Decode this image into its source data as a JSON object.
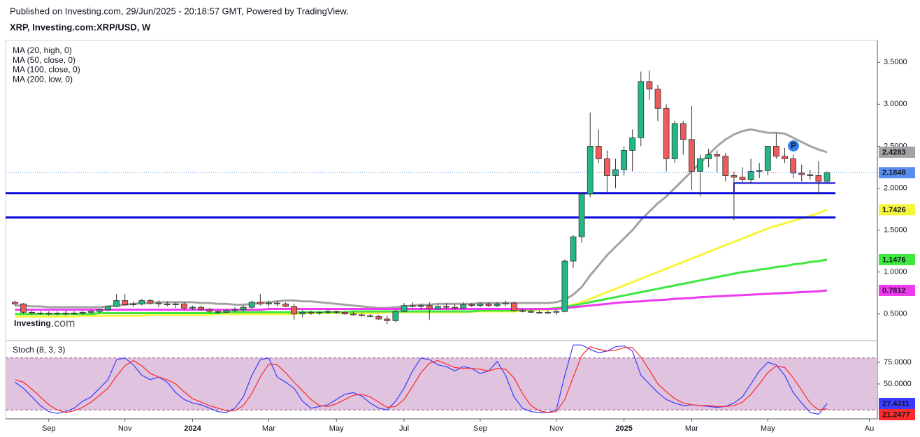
{
  "chart_data": {
    "type": "candlestick",
    "subtitle": "Published on Investing.com, 29/Jun/2025 - 20:18:57 GMT, Powered by TradingView.",
    "title": "XRP, Investing.com:XRP/USD, W",
    "logo": {
      "name": "Investing",
      "suffix": ".com"
    },
    "event_marker": "P",
    "categories": [
      null,
      null,
      null,
      null,
      "Sep",
      null,
      null,
      null,
      null,
      null,
      null,
      null,
      null,
      "Nov",
      null,
      null,
      null,
      null,
      null,
      null,
      null,
      "2024",
      null,
      null,
      null,
      null,
      null,
      null,
      null,
      null,
      "Mar",
      null,
      null,
      null,
      null,
      null,
      null,
      null,
      "May",
      null,
      null,
      null,
      null,
      null,
      null,
      null,
      "Jul",
      null,
      null,
      null,
      null,
      null,
      null,
      null,
      null,
      "Sep",
      null,
      null,
      null,
      null,
      null,
      null,
      null,
      null,
      "Nov",
      null,
      null,
      null,
      null,
      null,
      null,
      null,
      "2025",
      null,
      null,
      null,
      null,
      null,
      null,
      null,
      "Mar",
      null,
      null,
      null,
      null,
      null,
      null,
      null,
      null,
      "May",
      null,
      null,
      null,
      null,
      null,
      null,
      null,
      null,
      null,
      null,
      null,
      "Au"
    ],
    "open": [
      0.64,
      0.62,
      0.52,
      0.51,
      0.51,
      0.5,
      0.51,
      0.5,
      0.51,
      0.52,
      0.53,
      0.55,
      0.59,
      0.66,
      0.61,
      0.62,
      0.66,
      0.63,
      0.62,
      0.61,
      0.62,
      0.57,
      0.58,
      0.55,
      0.53,
      0.52,
      0.54,
      0.55,
      0.58,
      0.64,
      0.62,
      0.63,
      0.62,
      0.59,
      0.5,
      0.52,
      0.51,
      0.52,
      0.53,
      0.52,
      0.5,
      0.49,
      0.48,
      0.47,
      0.44,
      0.42,
      0.53,
      0.6,
      0.59,
      0.6,
      0.56,
      0.59,
      0.58,
      0.57,
      0.61,
      0.6,
      0.62,
      0.6,
      0.62,
      0.63,
      0.54,
      0.53,
      0.52,
      0.51,
      0.52,
      0.53,
      1.13,
      1.42,
      1.93,
      2.5,
      2.35,
      2.15,
      2.22,
      2.45,
      2.6,
      3.27,
      3.18,
      2.95,
      2.35,
      2.77,
      2.58,
      2.2,
      2.35,
      2.4,
      2.38,
      2.15,
      2.13,
      2.1,
      2.2,
      2.21,
      2.5,
      2.38,
      2.35,
      2.18,
      2.16,
      2.15,
      2.08,
      null,
      null,
      null,
      null,
      null
    ],
    "high": [
      0.66,
      0.63,
      0.54,
      0.53,
      0.53,
      0.53,
      0.54,
      0.53,
      0.53,
      0.55,
      0.56,
      0.6,
      0.74,
      0.74,
      0.65,
      0.68,
      0.68,
      0.66,
      0.65,
      0.64,
      0.64,
      0.6,
      0.6,
      0.57,
      0.55,
      0.56,
      0.58,
      0.6,
      0.66,
      0.74,
      0.66,
      0.66,
      0.64,
      0.62,
      0.55,
      0.54,
      0.53,
      0.55,
      0.54,
      0.53,
      0.53,
      0.51,
      0.5,
      0.49,
      0.48,
      0.55,
      0.63,
      0.64,
      0.62,
      0.64,
      0.61,
      0.63,
      0.62,
      0.64,
      0.63,
      0.64,
      0.64,
      0.64,
      0.66,
      0.65,
      0.56,
      0.55,
      0.54,
      0.54,
      0.55,
      1.15,
      1.44,
      1.95,
      2.9,
      2.7,
      2.45,
      2.35,
      2.5,
      2.7,
      3.39,
      3.4,
      3.23,
      3.0,
      2.8,
      2.8,
      2.98,
      2.4,
      2.47,
      2.45,
      2.42,
      2.2,
      2.25,
      2.35,
      2.3,
      2.5,
      2.65,
      2.48,
      2.4,
      2.28,
      2.22,
      2.32,
      2.2,
      null,
      null,
      null,
      null,
      null
    ],
    "low": [
      0.6,
      0.5,
      0.49,
      0.49,
      0.48,
      0.48,
      0.48,
      0.49,
      0.49,
      0.5,
      0.51,
      0.53,
      0.58,
      0.6,
      0.58,
      0.6,
      0.61,
      0.58,
      0.59,
      0.57,
      0.55,
      0.55,
      0.54,
      0.51,
      0.5,
      0.51,
      0.52,
      0.53,
      0.56,
      0.6,
      0.58,
      0.59,
      0.58,
      0.43,
      0.46,
      0.49,
      0.49,
      0.5,
      0.5,
      0.49,
      0.48,
      0.47,
      0.46,
      0.43,
      0.38,
      0.4,
      0.52,
      0.57,
      0.55,
      0.43,
      0.55,
      0.56,
      0.55,
      0.56,
      0.58,
      0.58,
      0.58,
      0.58,
      0.59,
      0.53,
      0.52,
      0.51,
      0.5,
      0.5,
      0.49,
      0.52,
      1.05,
      1.35,
      1.89,
      2.3,
      1.95,
      2.0,
      2.15,
      2.2,
      2.5,
      3.05,
      2.8,
      2.2,
      2.3,
      2.4,
      1.98,
      1.9,
      2.25,
      2.18,
      2.08,
      1.62,
      2.07,
      2.05,
      2.12,
      2.15,
      2.35,
      2.3,
      2.12,
      2.08,
      2.1,
      1.93,
      2.07,
      null,
      null,
      null,
      null,
      null
    ],
    "close": [
      0.62,
      0.52,
      0.51,
      0.51,
      0.5,
      0.51,
      0.5,
      0.51,
      0.52,
      0.53,
      0.55,
      0.59,
      0.66,
      0.61,
      0.62,
      0.66,
      0.63,
      0.62,
      0.61,
      0.62,
      0.57,
      0.58,
      0.55,
      0.53,
      0.52,
      0.54,
      0.55,
      0.58,
      0.64,
      0.62,
      0.63,
      0.62,
      0.59,
      0.5,
      0.52,
      0.51,
      0.52,
      0.53,
      0.52,
      0.5,
      0.49,
      0.48,
      0.47,
      0.44,
      0.42,
      0.53,
      0.6,
      0.59,
      0.6,
      0.56,
      0.59,
      0.58,
      0.57,
      0.61,
      0.6,
      0.62,
      0.6,
      0.62,
      0.63,
      0.54,
      0.53,
      0.52,
      0.51,
      0.52,
      0.53,
      1.13,
      1.42,
      1.93,
      2.5,
      2.35,
      2.15,
      2.22,
      2.45,
      2.6,
      3.27,
      3.18,
      2.95,
      2.35,
      2.77,
      2.58,
      2.2,
      2.35,
      2.4,
      2.38,
      2.15,
      2.13,
      2.1,
      2.2,
      2.21,
      2.5,
      2.38,
      2.35,
      2.18,
      2.16,
      2.15,
      2.08,
      2.1848,
      null,
      null,
      null,
      null,
      null
    ],
    "up_color": "#22b884",
    "down_color": "#ef5a5a",
    "last_price_color": "#5b8def",
    "series": [
      {
        "name": "MA (20, high, 0)",
        "color": "#a3a3a3",
        "values": [
          0.6,
          0.6,
          0.59,
          0.59,
          0.58,
          0.58,
          0.58,
          0.58,
          0.58,
          0.58,
          0.58,
          0.59,
          0.6,
          0.61,
          0.62,
          0.63,
          0.63,
          0.64,
          0.64,
          0.64,
          0.64,
          0.64,
          0.63,
          0.63,
          0.62,
          0.62,
          0.61,
          0.61,
          0.62,
          0.63,
          0.64,
          0.65,
          0.66,
          0.66,
          0.65,
          0.65,
          0.64,
          0.63,
          0.62,
          0.61,
          0.6,
          0.59,
          0.58,
          0.57,
          0.57,
          0.58,
          0.59,
          0.6,
          0.61,
          0.61,
          0.62,
          0.62,
          0.62,
          0.62,
          0.62,
          0.63,
          0.63,
          0.63,
          0.63,
          0.63,
          0.63,
          0.63,
          0.63,
          0.63,
          0.64,
          0.67,
          0.73,
          0.82,
          0.96,
          1.08,
          1.2,
          1.3,
          1.4,
          1.5,
          1.62,
          1.72,
          1.82,
          1.9,
          2.0,
          2.1,
          2.2,
          2.3,
          2.4,
          2.5,
          2.58,
          2.64,
          2.68,
          2.7,
          2.68,
          2.66,
          2.66,
          2.65,
          2.6,
          2.55,
          2.5,
          2.46,
          2.4283,
          null,
          null,
          null,
          null,
          null
        ]
      },
      {
        "name": "MA (50, close, 0)",
        "color": "#f5f53a",
        "values": [
          0.47,
          0.47,
          0.47,
          0.47,
          0.47,
          0.47,
          0.47,
          0.47,
          0.48,
          0.48,
          0.48,
          0.48,
          0.48,
          0.48,
          0.48,
          0.48,
          0.49,
          0.49,
          0.49,
          0.49,
          0.49,
          0.49,
          0.49,
          0.49,
          0.5,
          0.5,
          0.5,
          0.5,
          0.5,
          0.5,
          0.5,
          0.5,
          0.5,
          0.5,
          0.51,
          0.51,
          0.51,
          0.51,
          0.51,
          0.51,
          0.51,
          0.51,
          0.51,
          0.51,
          0.52,
          0.52,
          0.52,
          0.52,
          0.52,
          0.52,
          0.52,
          0.52,
          0.52,
          0.52,
          0.53,
          0.53,
          0.53,
          0.53,
          0.53,
          0.53,
          0.54,
          0.54,
          0.55,
          0.55,
          0.56,
          0.58,
          0.61,
          0.64,
          0.68,
          0.72,
          0.76,
          0.8,
          0.84,
          0.88,
          0.92,
          0.96,
          1.0,
          1.04,
          1.08,
          1.12,
          1.16,
          1.2,
          1.24,
          1.28,
          1.32,
          1.36,
          1.4,
          1.44,
          1.48,
          1.52,
          1.55,
          1.58,
          1.61,
          1.64,
          1.67,
          1.7,
          1.7426,
          null,
          null,
          null,
          null,
          null
        ]
      },
      {
        "name": "MA (100, close, 0)",
        "color": "#3ee83e",
        "values": [
          0.5,
          0.5,
          0.5,
          0.5,
          0.5,
          0.5,
          0.5,
          0.5,
          0.5,
          0.5,
          0.51,
          0.51,
          0.51,
          0.51,
          0.51,
          0.51,
          0.51,
          0.51,
          0.51,
          0.51,
          0.51,
          0.51,
          0.51,
          0.51,
          0.51,
          0.52,
          0.52,
          0.52,
          0.52,
          0.52,
          0.52,
          0.52,
          0.52,
          0.52,
          0.52,
          0.52,
          0.52,
          0.52,
          0.52,
          0.52,
          0.53,
          0.53,
          0.53,
          0.53,
          0.53,
          0.53,
          0.53,
          0.53,
          0.53,
          0.53,
          0.53,
          0.53,
          0.53,
          0.53,
          0.53,
          0.54,
          0.54,
          0.54,
          0.54,
          0.54,
          0.55,
          0.55,
          0.56,
          0.56,
          0.57,
          0.58,
          0.6,
          0.62,
          0.64,
          0.66,
          0.68,
          0.7,
          0.72,
          0.74,
          0.76,
          0.78,
          0.8,
          0.82,
          0.84,
          0.86,
          0.88,
          0.9,
          0.92,
          0.94,
          0.96,
          0.98,
          1.0,
          1.01,
          1.03,
          1.04,
          1.06,
          1.07,
          1.09,
          1.1,
          1.12,
          1.13,
          1.1476,
          null,
          null,
          null,
          null,
          null
        ]
      },
      {
        "name": "MA (200, low, 0)",
        "color": "#ee3aee",
        "values": [
          0.55,
          0.55,
          0.55,
          0.55,
          0.55,
          0.55,
          0.55,
          0.55,
          0.55,
          0.55,
          0.55,
          0.55,
          0.55,
          0.55,
          0.55,
          0.55,
          0.55,
          0.55,
          0.55,
          0.55,
          0.55,
          0.55,
          0.55,
          0.55,
          0.55,
          0.55,
          0.55,
          0.55,
          0.55,
          0.55,
          0.56,
          0.56,
          0.56,
          0.56,
          0.56,
          0.56,
          0.56,
          0.56,
          0.56,
          0.56,
          0.56,
          0.56,
          0.56,
          0.56,
          0.56,
          0.56,
          0.56,
          0.56,
          0.56,
          0.56,
          0.56,
          0.56,
          0.56,
          0.56,
          0.56,
          0.56,
          0.56,
          0.56,
          0.56,
          0.56,
          0.56,
          0.56,
          0.56,
          0.56,
          0.56,
          0.57,
          0.58,
          0.59,
          0.6,
          0.61,
          0.62,
          0.63,
          0.64,
          0.645,
          0.65,
          0.66,
          0.665,
          0.67,
          0.68,
          0.685,
          0.69,
          0.7,
          0.705,
          0.71,
          0.715,
          0.72,
          0.725,
          0.73,
          0.735,
          0.74,
          0.745,
          0.75,
          0.755,
          0.76,
          0.765,
          0.77,
          0.7812,
          null,
          null,
          null,
          null,
          null
        ]
      }
    ],
    "support_lines": [
      1.94,
      1.65
    ],
    "support_color": "#0a0adc",
    "range_top": 2.06,
    "ylim": [
      0.19,
      3.76
    ],
    "yticks": [
      {
        "value": 0.5,
        "label": "0.5000"
      },
      {
        "value": 1,
        "label": "1.0000"
      },
      {
        "value": 1.5,
        "label": "1.5000"
      },
      {
        "value": 2,
        "label": "2.0000"
      },
      {
        "value": 2.5,
        "label": "2.5000"
      },
      {
        "value": 3,
        "label": "3.0000"
      },
      {
        "value": 3.5,
        "label": "3.5000"
      }
    ],
    "stoch": {
      "title": "Stoch (8, 3, 3)",
      "ylim": [
        9.7,
        99.2
      ],
      "yticks": [
        {
          "value": 50,
          "label": "50.0000"
        },
        {
          "value": 75,
          "label": "75.0000"
        }
      ],
      "bands": [
        20,
        80
      ],
      "band_color": "#dfc3df",
      "series": [
        {
          "color": "#3b3bff",
          "values": [
            52,
            45,
            35,
            25,
            18,
            16,
            18,
            22,
            30,
            35,
            45,
            55,
            78,
            80,
            72,
            60,
            55,
            58,
            52,
            40,
            32,
            28,
            26,
            22,
            18,
            17,
            22,
            35,
            60,
            78,
            80,
            58,
            52,
            45,
            30,
            22,
            24,
            26,
            32,
            38,
            40,
            36,
            28,
            22,
            20,
            30,
            45,
            65,
            80,
            78,
            72,
            70,
            65,
            70,
            68,
            62,
            65,
            76,
            60,
            35,
            22,
            18,
            17,
            17,
            20,
            60,
            95,
            95,
            90,
            86,
            88,
            93,
            94,
            88,
            60,
            50,
            40,
            32,
            28,
            25,
            26,
            25,
            24,
            23,
            24,
            28,
            35,
            50,
            65,
            75,
            72,
            60,
            40,
            28,
            17,
            15,
            27.4311,
            null,
            null,
            null,
            null,
            null
          ]
        },
        {
          "color": "#ff2a2a",
          "values": [
            55,
            52,
            44,
            35,
            26,
            20,
            17,
            19,
            23,
            29,
            37,
            45,
            59,
            71,
            77,
            71,
            62,
            58,
            55,
            50,
            41,
            33,
            29,
            25,
            22,
            19,
            19,
            25,
            39,
            58,
            73,
            72,
            63,
            52,
            42,
            32,
            25,
            24,
            27,
            32,
            37,
            38,
            35,
            29,
            23,
            24,
            32,
            47,
            63,
            74,
            77,
            73,
            69,
            68,
            68,
            67,
            65,
            68,
            67,
            57,
            39,
            25,
            19,
            17,
            18,
            32,
            58,
            83,
            93,
            90,
            88,
            89,
            92,
            92,
            81,
            66,
            50,
            41,
            33,
            28,
            26,
            25,
            25,
            24,
            24,
            25,
            29,
            38,
            50,
            63,
            71,
            69,
            57,
            43,
            28,
            20,
            21.2477,
            null,
            null,
            null,
            null,
            null
          ]
        }
      ]
    }
  }
}
